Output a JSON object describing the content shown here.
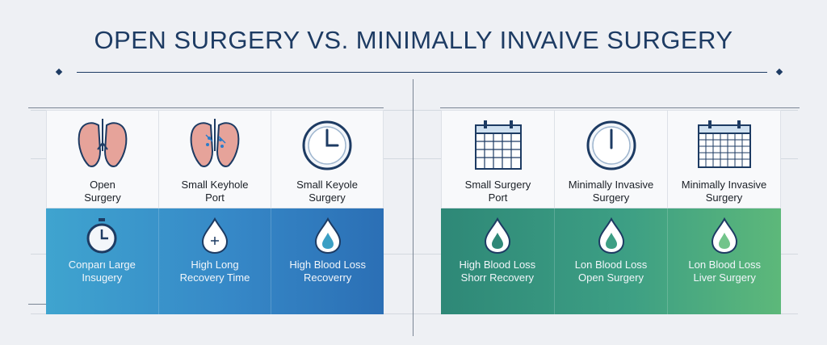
{
  "title": "OPEN SURGERY VS. MINIMALLY INVAIVE SURGERY",
  "colors": {
    "navy": "#1d3b63",
    "left_gradient": [
      "#3fa4cf",
      "#2b6fb5"
    ],
    "right_gradient": [
      "#2e8877",
      "#5db87a"
    ]
  },
  "left_panel": {
    "top": [
      {
        "icon": "lungs-icon",
        "label": "Open\nSurgery"
      },
      {
        "icon": "lungs-ports-icon",
        "label": "Small Keyhole\nPort"
      },
      {
        "icon": "clock-icon",
        "label": "Small Keyole\nSurgery"
      }
    ],
    "bottom": [
      {
        "icon": "stopwatch-icon",
        "label": "Conparı Large\nInsugery"
      },
      {
        "icon": "blood-drop-plus-icon",
        "label": "High Long\nRecovery Time"
      },
      {
        "icon": "blood-drop-icon",
        "label": "High Blood Loss\nRecoverry"
      }
    ]
  },
  "right_panel": {
    "top": [
      {
        "icon": "calendar-icon",
        "label": "Small Surgery\nPort"
      },
      {
        "icon": "clock-icon",
        "label": "Minimally Invasive\nSurgery"
      },
      {
        "icon": "calendar-grid-icon",
        "label": "Minimally Invasive\nSurgery"
      }
    ],
    "bottom": [
      {
        "icon": "blood-drop-icon",
        "label": "High Blood Loss\nShorr Recovery"
      },
      {
        "icon": "blood-drop-icon",
        "label": "Lon Blood Loss\nOpen Surgery"
      },
      {
        "icon": "blood-drop-icon",
        "label": "Lon Blood Loss\nLiver Surgery"
      }
    ]
  }
}
